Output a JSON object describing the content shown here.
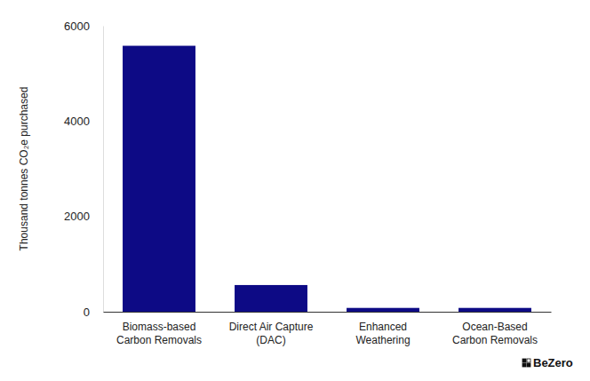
{
  "chart_data": {
    "type": "bar",
    "y_label": "Thousand tonnes CO₂e purchased",
    "categories": [
      "Biomass-based\nCarbon Removals",
      "Direct Air Capture\n(DAC)",
      "Enhanced\nWeathering",
      "Ocean-Based\nCarbon Removals"
    ],
    "values": [
      5580,
      560,
      80,
      80
    ],
    "color": "#0d0a85",
    "ylim": [
      0,
      6000
    ],
    "yticks": [
      0,
      2000,
      4000,
      6000
    ],
    "grid": false,
    "watermark": "BeZero"
  }
}
